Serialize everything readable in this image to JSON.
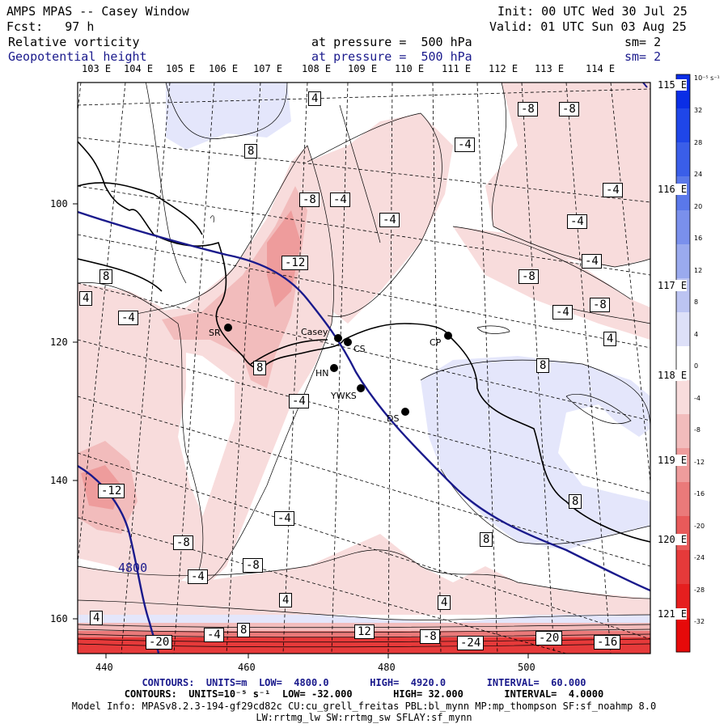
{
  "header": {
    "model_title": "AMPS MPAS -- Casey Window",
    "init_label": "Init: 00 UTC Wed 30 Jul 25",
    "fcst_label": "Fcst:   97 h",
    "valid_label": "Valid: 01 UTC Sun 03 Aug 25",
    "field1_name": "Relative vorticity",
    "field1_level": "at pressure =  500 hPa",
    "field1_sm": "sm= 2",
    "field2_name": "Geopotential height",
    "field2_level": "at pressure =  500 hPa",
    "field2_sm": "sm= 2"
  },
  "longitude_labels": [
    "103 E",
    "104 E",
    "105 E",
    "106 E",
    "107 E",
    "108 E",
    "109 E",
    "110 E",
    "111 E",
    "112 E",
    "113 E",
    "114 E"
  ],
  "latitude_labels": [
    "115 E",
    "116 E",
    "117 E",
    "118 E",
    "119 E",
    "120 E",
    "121 E"
  ],
  "y_axis_ticks": [
    "100",
    "120",
    "140",
    "160"
  ],
  "x_axis_ticks": [
    "440",
    "460",
    "480",
    "500"
  ],
  "colorbar": {
    "unit_label": "10⁻⁵ s⁻¹",
    "ticks": [
      "32",
      "28",
      "24",
      "20",
      "16",
      "12",
      "8",
      "4",
      "0",
      "-4",
      "-8",
      "-12",
      "-16",
      "-20",
      "-24",
      "-28",
      "-32"
    ],
    "colors": [
      "#0a2ee6",
      "#1f46e8",
      "#3a5ee9",
      "#5a78ea",
      "#7a90ec",
      "#9aaaee",
      "#bcc4f2",
      "#dde0f8",
      "#ffffff",
      "#f8dcdc",
      "#f2bcbc",
      "#ee9c9c",
      "#ea7a7a",
      "#e85a5a",
      "#e63a3a",
      "#e61f1f",
      "#e60a0a"
    ]
  },
  "contour_labels": [
    {
      "text": "4"
    },
    {
      "text": "-8"
    },
    {
      "text": "-8"
    },
    {
      "text": "8"
    },
    {
      "text": "-4"
    },
    {
      "text": "-8"
    },
    {
      "text": "-4"
    },
    {
      "text": "-4"
    },
    {
      "text": "-4"
    },
    {
      "text": "-4"
    },
    {
      "text": "-12"
    },
    {
      "text": "-4"
    },
    {
      "text": "-8"
    },
    {
      "text": "8"
    },
    {
      "text": "4"
    },
    {
      "text": "-4"
    },
    {
      "text": "-4"
    },
    {
      "text": "-8"
    },
    {
      "text": "4"
    },
    {
      "text": "8"
    },
    {
      "text": "8"
    },
    {
      "text": "-4"
    },
    {
      "text": "-12"
    },
    {
      "text": "-4"
    },
    {
      "text": "-8"
    },
    {
      "text": "8"
    },
    {
      "text": "-8"
    },
    {
      "text": "-4"
    },
    {
      "text": "8"
    },
    {
      "text": "4"
    },
    {
      "text": "4"
    },
    {
      "text": "4"
    },
    {
      "text": "8"
    },
    {
      "text": "-4"
    },
    {
      "text": "12"
    },
    {
      "text": "-8"
    },
    {
      "text": "-24"
    },
    {
      "text": "-20"
    },
    {
      "text": "-16"
    },
    {
      "text": "-20"
    }
  ],
  "height_contour_label": "4800",
  "cities": [
    {
      "name": "SR"
    },
    {
      "name": "Casey"
    },
    {
      "name": "CS"
    },
    {
      "name": "CP"
    },
    {
      "name": "HN"
    },
    {
      "name": "YWKS"
    },
    {
      "name": "DS"
    }
  ],
  "footer": {
    "line1": "CONTOURS:  UNITS=m  LOW=  4800.0       HIGH=  4920.0       INTERVAL=  60.000",
    "line2": "CONTOURS:  UNITS=10⁻⁵ s⁻¹  LOW= -32.000       HIGH= 32.000       INTERVAL=  4.0000",
    "line3": "Model Info: MPASv8.2.3-194-gf29cd82c CU:cu_grell_freitas PBL:bl_mynn MP:mp_thompson SF:sf_noahmp 8.0",
    "line4": "LW:rrtmg_lw SW:rrtmg_sw SFLAY:sf_mynn"
  }
}
